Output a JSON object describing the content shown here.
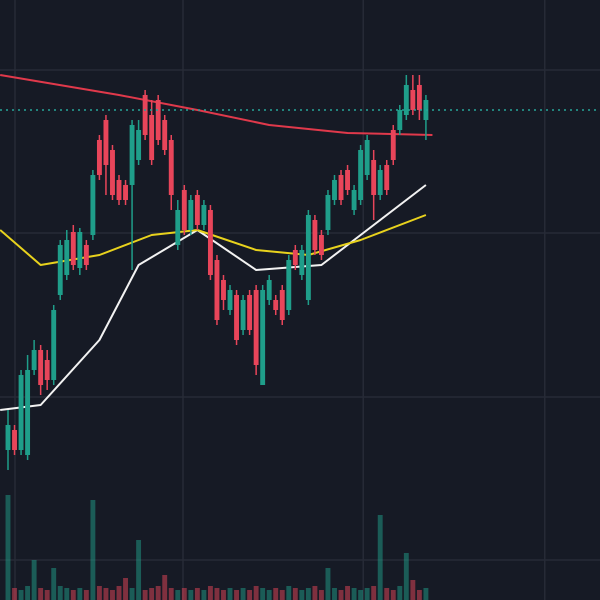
{
  "chart_data": {
    "type": "candlestick",
    "up_color": "#1f9e8a",
    "down_color": "#e8455a",
    "background": "#161a25",
    "grid": true,
    "grid_color": "#272b36",
    "xlim": [
      -1.225,
      90.66
    ],
    "ylim": [
      0,
      600
    ],
    "volume_ylim": [
      0,
      600
    ],
    "xticks": [
      1.07,
      26.8,
      54.4,
      82.2
    ],
    "yticks": [
      40,
      203,
      367,
      530
    ],
    "price_line": 490,
    "price_line_color": "#26a69a",
    "x": [
      0,
      1,
      2,
      3,
      4,
      5,
      6,
      7,
      8,
      9,
      10,
      11,
      12,
      13,
      14,
      15,
      16,
      17,
      18,
      19,
      20,
      21,
      22,
      23,
      24,
      25,
      26,
      27,
      28,
      29,
      30,
      31,
      32,
      33,
      34,
      35,
      36,
      37,
      38,
      39,
      40,
      41,
      42,
      43,
      44,
      45,
      46,
      47,
      48,
      49,
      50,
      51,
      52,
      53,
      54,
      55,
      56,
      57,
      58,
      59,
      60,
      61,
      62,
      63,
      64
    ],
    "open": [
      150,
      170,
      150,
      145,
      230,
      250,
      240,
      220,
      305,
      325,
      368,
      332,
      355,
      365,
      460,
      480,
      450,
      420,
      415,
      415,
      440,
      505,
      485,
      500,
      480,
      460,
      355,
      410,
      370,
      405,
      375,
      390,
      340,
      320,
      290,
      305,
      270,
      305,
      310,
      215,
      300,
      300,
      310,
      290,
      350,
      325,
      300,
      380,
      365,
      370,
      400,
      425,
      430,
      390,
      400,
      425,
      440,
      405,
      435,
      470,
      470,
      485,
      510,
      515,
      480
    ],
    "close": [
      175,
      150,
      225,
      230,
      250,
      215,
      220,
      290,
      355,
      360,
      335,
      368,
      335,
      425,
      425,
      435,
      405,
      400,
      400,
      475,
      470,
      465,
      440,
      460,
      450,
      405,
      390,
      370,
      400,
      375,
      395,
      325,
      280,
      300,
      310,
      260,
      300,
      270,
      235,
      310,
      320,
      290,
      280,
      340,
      335,
      350,
      385,
      350,
      345,
      405,
      420,
      400,
      410,
      410,
      450,
      460,
      405,
      430,
      410,
      440,
      490,
      515,
      490,
      490,
      500
    ],
    "high": [
      190,
      175,
      230,
      245,
      260,
      255,
      250,
      295,
      360,
      370,
      375,
      372,
      360,
      430,
      465,
      485,
      455,
      425,
      420,
      480,
      480,
      510,
      500,
      505,
      485,
      465,
      400,
      415,
      405,
      410,
      400,
      395,
      345,
      325,
      315,
      310,
      305,
      310,
      315,
      315,
      325,
      305,
      315,
      345,
      355,
      355,
      390,
      385,
      370,
      410,
      425,
      430,
      435,
      415,
      455,
      465,
      450,
      435,
      440,
      475,
      495,
      525,
      525,
      525,
      505
    ],
    "low": [
      130,
      145,
      145,
      140,
      225,
      205,
      210,
      215,
      300,
      320,
      330,
      325,
      330,
      360,
      420,
      405,
      400,
      395,
      395,
      330,
      435,
      460,
      435,
      455,
      445,
      390,
      350,
      365,
      365,
      370,
      370,
      320,
      275,
      290,
      285,
      255,
      265,
      265,
      225,
      215,
      295,
      285,
      275,
      285,
      330,
      320,
      295,
      345,
      340,
      365,
      395,
      395,
      405,
      385,
      395,
      420,
      380,
      400,
      405,
      435,
      465,
      480,
      485,
      480,
      460
    ],
    "volume": [
      105,
      12,
      10,
      14,
      40,
      12,
      10,
      32,
      14,
      12,
      10,
      12,
      10,
      100,
      14,
      12,
      10,
      14,
      22,
      12,
      60,
      10,
      12,
      14,
      25,
      12,
      10,
      12,
      10,
      12,
      10,
      14,
      12,
      10,
      12,
      10,
      12,
      10,
      14,
      12,
      10,
      12,
      10,
      14,
      12,
      10,
      12,
      14,
      10,
      32,
      12,
      10,
      14,
      12,
      10,
      12,
      14,
      85,
      12,
      10,
      14,
      47,
      20,
      10,
      12
    ],
    "series": [
      {
        "color": "#e0394b",
        "x": [
          -1.2,
          17,
          29,
          40,
          52,
          65
        ],
        "values": [
          525,
          505,
          490,
          475,
          467,
          465
        ]
      },
      {
        "color": "#f2f2f2",
        "x": [
          -1.2,
          5,
          14,
          20,
          29,
          38,
          48,
          55,
          64
        ],
        "values": [
          190,
          195,
          260,
          335,
          370,
          330,
          335,
          370,
          415
        ]
      },
      {
        "color": "#e8d21d",
        "x": [
          -1.2,
          5,
          14,
          22,
          29,
          38,
          46,
          54,
          64
        ],
        "values": [
          370,
          335,
          345,
          365,
          370,
          350,
          345,
          360,
          385
        ]
      }
    ]
  }
}
